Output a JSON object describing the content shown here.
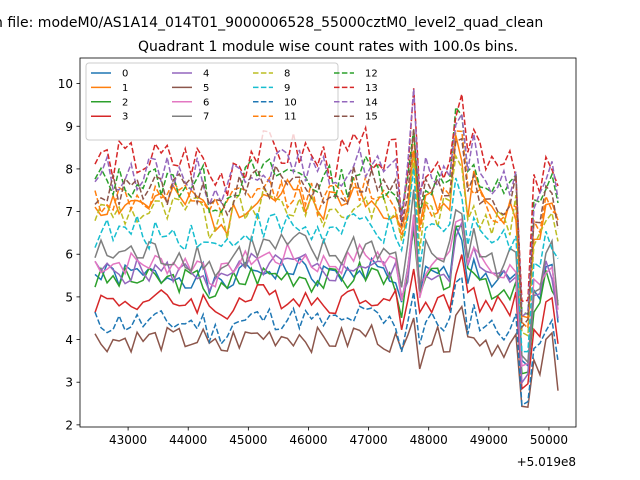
{
  "window_title": "n file: modeM0/AS1A14_014T01_9000006528_55000cztM0_level2_quad_clean",
  "chart_data": {
    "type": "line",
    "title": "Quadrant 1 module wise count rates with 100.0s bins.",
    "xlabel": "",
    "ylabel": "",
    "x_offset_label": "+5.019e8",
    "xlim": [
      42200,
      50450
    ],
    "ylim": [
      1.95,
      10.6
    ],
    "xticks": [
      43000,
      44000,
      45000,
      46000,
      47000,
      48000,
      49000,
      50000
    ],
    "xtick_labels": [
      "43000",
      "44000",
      "45000",
      "46000",
      "47000",
      "48000",
      "49000",
      "50000"
    ],
    "yticks": [
      2,
      3,
      4,
      5,
      6,
      7,
      8,
      9,
      10
    ],
    "ytick_labels": [
      "2",
      "3",
      "4",
      "5",
      "6",
      "7",
      "8",
      "9",
      "10"
    ],
    "grid": false,
    "legend_position": "top-left",
    "legend_columns": 4,
    "x_start": 42450,
    "x_end": 50150,
    "x_step": 100,
    "series": [
      {
        "name": "0",
        "color": "#1f77b4",
        "style": "solid",
        "base": 5.5,
        "amp": 0.3,
        "seed": 1,
        "fall": 3.4,
        "end": 4.4
      },
      {
        "name": "1",
        "color": "#ff7f0e",
        "style": "solid",
        "base": 7.2,
        "amp": 0.4,
        "seed": 2,
        "fall": 4.5,
        "end": 6.8
      },
      {
        "name": "2",
        "color": "#2ca02c",
        "style": "solid",
        "base": 5.4,
        "amp": 0.3,
        "seed": 3,
        "fall": 3.2,
        "end": 4.9
      },
      {
        "name": "3",
        "color": "#d62728",
        "style": "solid",
        "base": 4.9,
        "amp": 0.3,
        "seed": 4,
        "fall": 2.9,
        "end": 3.9
      },
      {
        "name": "4",
        "color": "#9467bd",
        "style": "solid",
        "base": 5.6,
        "amp": 0.3,
        "seed": 5,
        "fall": 3.1,
        "end": 4.5
      },
      {
        "name": "5",
        "color": "#8c564b",
        "style": "solid",
        "base": 4.0,
        "amp": 0.3,
        "seed": 6,
        "fall": 2.3,
        "end": 2.8
      },
      {
        "name": "6",
        "color": "#e377c2",
        "style": "solid",
        "base": 5.8,
        "amp": 0.3,
        "seed": 7,
        "fall": 3.3,
        "end": 4.7
      },
      {
        "name": "7",
        "color": "#7f7f7f",
        "style": "solid",
        "base": 6.0,
        "amp": 0.4,
        "seed": 8,
        "fall": 3.6,
        "end": 4.8
      },
      {
        "name": "8",
        "color": "#bcbd22",
        "style": "dashed",
        "base": 7.0,
        "amp": 0.4,
        "seed": 9,
        "fall": 4.2,
        "end": 6.3
      },
      {
        "name": "9",
        "color": "#17becf",
        "style": "dashed",
        "base": 6.5,
        "amp": 0.4,
        "seed": 10,
        "fall": 3.8,
        "end": 5.9
      },
      {
        "name": "10",
        "color": "#1f77b4",
        "style": "dashed",
        "base": 4.4,
        "amp": 0.3,
        "seed": 11,
        "fall": 2.6,
        "end": 3.5
      },
      {
        "name": "11",
        "color": "#ff7f0e",
        "style": "dashed",
        "base": 7.3,
        "amp": 0.4,
        "seed": 12,
        "fall": 4.3,
        "end": 6.9
      },
      {
        "name": "12",
        "color": "#2ca02c",
        "style": "dashed",
        "base": 7.7,
        "amp": 0.4,
        "seed": 13,
        "fall": 4.6,
        "end": 7.2
      },
      {
        "name": "13",
        "color": "#d62728",
        "style": "dashed",
        "base": 8.2,
        "amp": 0.5,
        "seed": 14,
        "fall": 4.9,
        "end": 7.6
      },
      {
        "name": "14",
        "color": "#9467bd",
        "style": "dashed",
        "base": 7.9,
        "amp": 0.4,
        "seed": 15,
        "fall": 4.6,
        "end": 7.3
      },
      {
        "name": "15",
        "color": "#8c564b",
        "style": "dashed",
        "base": 7.5,
        "amp": 0.4,
        "seed": 16,
        "fall": 4.4,
        "end": 6.6
      }
    ]
  }
}
